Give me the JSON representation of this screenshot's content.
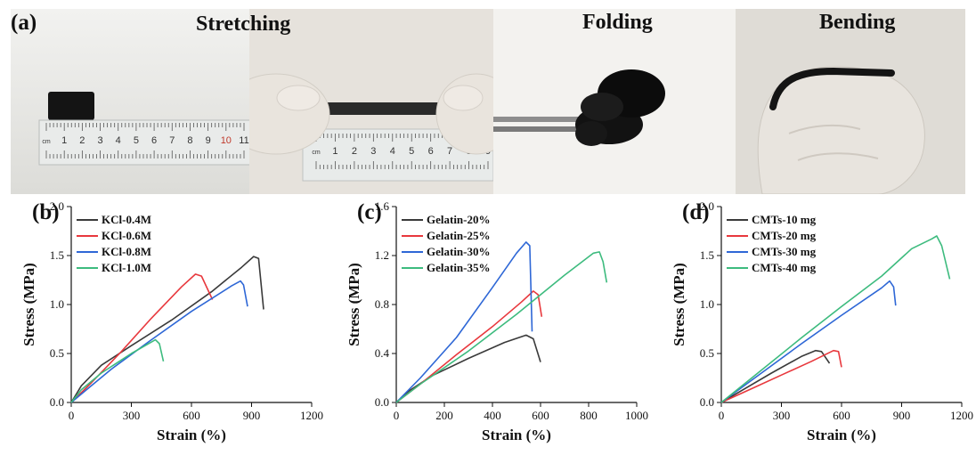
{
  "photos": {
    "panel_label": "(a)",
    "titles": [
      "Stretching",
      "Folding",
      "Bending"
    ],
    "ruler1_numbers": [
      "cm",
      "1",
      "2",
      "3",
      "4",
      "5",
      "6",
      "7",
      "8",
      "9",
      "10",
      "11"
    ],
    "ruler2_numbers": [
      "cm",
      "1",
      "2",
      "3",
      "4",
      "5",
      "6",
      "7",
      "8",
      "9"
    ]
  },
  "colors": {
    "black": "#3a3a3a",
    "red": "#e8383d",
    "blue": "#2e67d6",
    "green": "#3dbb7e"
  },
  "chart_data": [
    {
      "type": "line",
      "panel_label": "(b)",
      "xlabel": "Strain (%)",
      "ylabel": "Stress (MPa)",
      "xlim": [
        0,
        1200
      ],
      "ylim": [
        0,
        2.0
      ],
      "xticks": [
        0,
        300,
        600,
        900,
        1200
      ],
      "xtick_labels": [
        "0",
        "300",
        "600",
        "900",
        "1200"
      ],
      "yticks": [
        0,
        0.5,
        1.0,
        1.5,
        2.0
      ],
      "ytick_labels": [
        "0.0",
        "0.5",
        "1.0",
        "1.5",
        "2.0"
      ],
      "legend_position": "top-left",
      "series": [
        {
          "name": "KCl-0.4M",
          "color": "#3a3a3a",
          "points": [
            [
              0,
              0
            ],
            [
              50,
              0.17
            ],
            [
              150,
              0.38
            ],
            [
              300,
              0.58
            ],
            [
              500,
              0.84
            ],
            [
              700,
              1.13
            ],
            [
              850,
              1.38
            ],
            [
              910,
              1.49
            ],
            [
              935,
              1.47
            ],
            [
              960,
              0.95
            ]
          ]
        },
        {
          "name": "KCl-0.6M",
          "color": "#e8383d",
          "points": [
            [
              0,
              0
            ],
            [
              100,
              0.2
            ],
            [
              250,
              0.52
            ],
            [
              400,
              0.86
            ],
            [
              550,
              1.18
            ],
            [
              620,
              1.31
            ],
            [
              650,
              1.29
            ],
            [
              705,
              1.05
            ]
          ]
        },
        {
          "name": "KCl-0.8M",
          "color": "#2e67d6",
          "points": [
            [
              0,
              0
            ],
            [
              100,
              0.17
            ],
            [
              200,
              0.34
            ],
            [
              400,
              0.64
            ],
            [
              600,
              0.93
            ],
            [
              800,
              1.19
            ],
            [
              845,
              1.24
            ],
            [
              860,
              1.2
            ],
            [
              880,
              0.98
            ]
          ]
        },
        {
          "name": "KCl-1.0M",
          "color": "#3dbb7e",
          "points": [
            [
              0,
              0
            ],
            [
              50,
              0.13
            ],
            [
              150,
              0.3
            ],
            [
              300,
              0.5
            ],
            [
              420,
              0.64
            ],
            [
              440,
              0.6
            ],
            [
              460,
              0.42
            ]
          ]
        }
      ]
    },
    {
      "type": "line",
      "panel_label": "(c)",
      "xlabel": "Strain (%)",
      "ylabel": "Stress (MPa)",
      "xlim": [
        0,
        1000
      ],
      "ylim": [
        0,
        1.6
      ],
      "xticks": [
        0,
        200,
        400,
        600,
        800,
        1000
      ],
      "xtick_labels": [
        "0",
        "200",
        "400",
        "600",
        "800",
        "1000"
      ],
      "yticks": [
        0,
        0.4,
        0.8,
        1.2,
        1.6
      ],
      "ytick_labels": [
        "0.0",
        "0.4",
        "0.8",
        "1.2",
        "1.6"
      ],
      "legend_position": "top-left",
      "series": [
        {
          "name": "Gelatin-20%",
          "color": "#3a3a3a",
          "points": [
            [
              0,
              0
            ],
            [
              50,
              0.09
            ],
            [
              150,
              0.22
            ],
            [
              300,
              0.36
            ],
            [
              450,
              0.49
            ],
            [
              540,
              0.55
            ],
            [
              570,
              0.52
            ],
            [
              600,
              0.33
            ]
          ]
        },
        {
          "name": "Gelatin-25%",
          "color": "#e8383d",
          "points": [
            [
              0,
              0
            ],
            [
              100,
              0.15
            ],
            [
              250,
              0.39
            ],
            [
              400,
              0.62
            ],
            [
              520,
              0.82
            ],
            [
              570,
              0.91
            ],
            [
              590,
              0.88
            ],
            [
              605,
              0.7
            ]
          ]
        },
        {
          "name": "Gelatin-30%",
          "color": "#2e67d6",
          "points": [
            [
              0,
              0
            ],
            [
              100,
              0.2
            ],
            [
              250,
              0.53
            ],
            [
              400,
              0.94
            ],
            [
              500,
              1.22
            ],
            [
              540,
              1.31
            ],
            [
              555,
              1.28
            ],
            [
              565,
              0.58
            ]
          ]
        },
        {
          "name": "Gelatin-35%",
          "color": "#3dbb7e",
          "points": [
            [
              0,
              0
            ],
            [
              100,
              0.15
            ],
            [
              300,
              0.42
            ],
            [
              500,
              0.72
            ],
            [
              700,
              1.04
            ],
            [
              820,
              1.22
            ],
            [
              845,
              1.23
            ],
            [
              860,
              1.15
            ],
            [
              875,
              0.98
            ]
          ]
        }
      ]
    },
    {
      "type": "line",
      "panel_label": "(d)",
      "xlabel": "Strain (%)",
      "ylabel": "Stress (MPa)",
      "xlim": [
        0,
        1200
      ],
      "ylim": [
        0,
        2.0
      ],
      "xticks": [
        0,
        300,
        600,
        900,
        1200
      ],
      "xtick_labels": [
        "0",
        "300",
        "600",
        "900",
        "1200"
      ],
      "yticks": [
        0,
        0.5,
        1.0,
        1.5,
        2.0
      ],
      "ytick_labels": [
        "0.0",
        "0.5",
        "1.0",
        "1.5",
        "2.0"
      ],
      "legend_position": "top-left",
      "series": [
        {
          "name": "CMTs-10 mg",
          "color": "#3a3a3a",
          "points": [
            [
              0,
              0
            ],
            [
              100,
              0.12
            ],
            [
              250,
              0.3
            ],
            [
              400,
              0.47
            ],
            [
              470,
              0.53
            ],
            [
              500,
              0.52
            ],
            [
              540,
              0.4
            ]
          ]
        },
        {
          "name": "CMTs-20 mg",
          "color": "#e8383d",
          "points": [
            [
              0,
              0
            ],
            [
              150,
              0.14
            ],
            [
              300,
              0.28
            ],
            [
              450,
              0.42
            ],
            [
              560,
              0.53
            ],
            [
              585,
              0.52
            ],
            [
              600,
              0.36
            ]
          ]
        },
        {
          "name": "CMTs-30 mg",
          "color": "#2e67d6",
          "points": [
            [
              0,
              0
            ],
            [
              200,
              0.3
            ],
            [
              400,
              0.6
            ],
            [
              600,
              0.89
            ],
            [
              800,
              1.17
            ],
            [
              840,
              1.24
            ],
            [
              860,
              1.18
            ],
            [
              870,
              0.99
            ]
          ]
        },
        {
          "name": "CMTs-40 mg",
          "color": "#3dbb7e",
          "points": [
            [
              0,
              0
            ],
            [
              200,
              0.33
            ],
            [
              400,
              0.66
            ],
            [
              600,
              0.98
            ],
            [
              800,
              1.29
            ],
            [
              950,
              1.57
            ],
            [
              1050,
              1.67
            ],
            [
              1075,
              1.7
            ],
            [
              1100,
              1.6
            ],
            [
              1140,
              1.26
            ]
          ]
        }
      ]
    }
  ]
}
